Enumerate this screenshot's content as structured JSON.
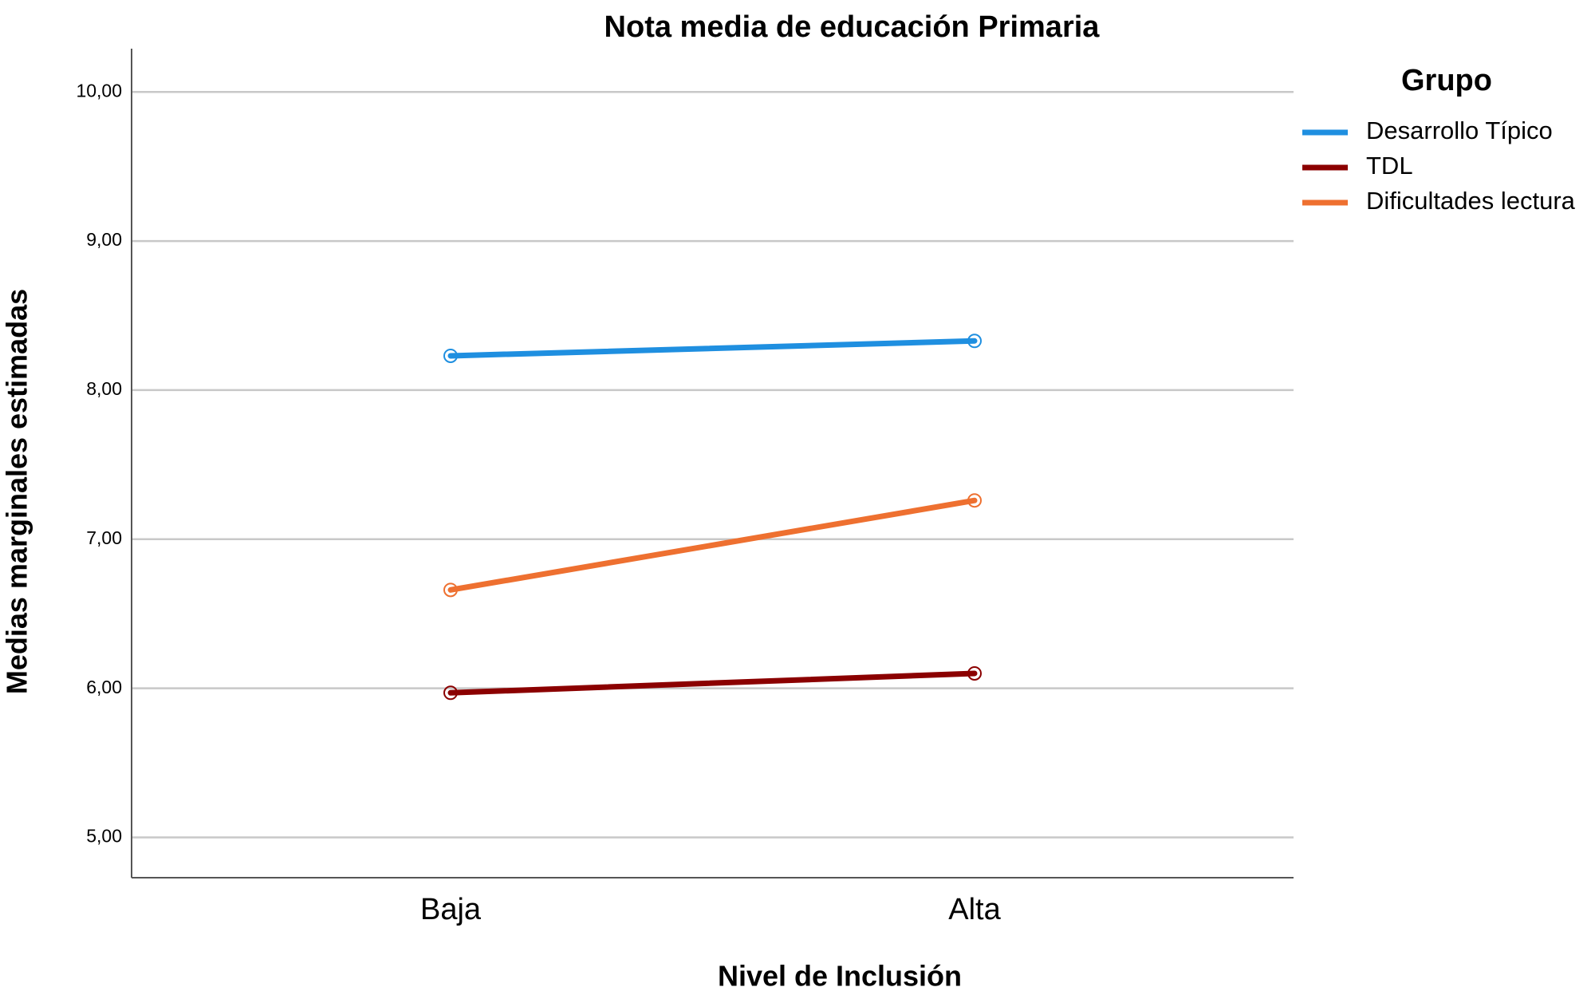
{
  "chart_data": {
    "type": "line",
    "title": "Nota media de educación Primaria",
    "x_label": "Nivel de Inclusión",
    "y_label": "Medias marginales estimadas",
    "categories": [
      "Baja",
      "Alta"
    ],
    "series": [
      {
        "name": "Desarrollo Típico",
        "color": "#1f8fe0",
        "values": [
          8.23,
          8.33
        ]
      },
      {
        "name": "TDL",
        "color": "#8b0000",
        "values": [
          5.97,
          6.1
        ]
      },
      {
        "name": "Dificultades lectura",
        "color": "#ee7030",
        "values": [
          6.66,
          7.26
        ]
      }
    ],
    "ylim": [
      4.73,
      10.29
    ],
    "yticks": [
      {
        "value": 5,
        "label": "5,00"
      },
      {
        "value": 6,
        "label": "6,00"
      },
      {
        "value": 7,
        "label": "7,00"
      },
      {
        "value": 8,
        "label": "8,00"
      },
      {
        "value": 9,
        "label": "9,00"
      },
      {
        "value": 10,
        "label": "10,00"
      }
    ],
    "grid": true,
    "legend": "right",
    "legend_title": "Grupo"
  }
}
